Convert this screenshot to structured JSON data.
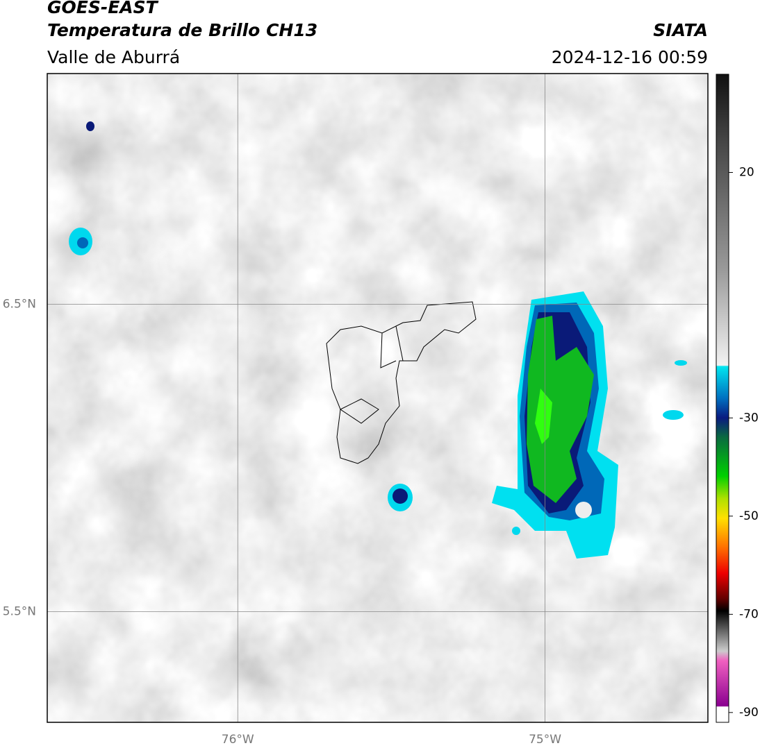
{
  "header": {
    "satellite": "GOES-EAST",
    "product": "Temperatura de Brillo CH13",
    "region": "Valle de Aburrá",
    "agency": "SIATA",
    "datetime": "2024-12-16 00:59"
  },
  "map": {
    "xlim": [
      -76.62,
      -74.47
    ],
    "ylim": [
      5.14,
      7.25
    ],
    "xticks": [
      {
        "value": -76,
        "label": "76°W"
      },
      {
        "value": -75,
        "label": "75°W"
      }
    ],
    "yticks": [
      {
        "value": 6.5,
        "label": "6.5°N"
      },
      {
        "value": 5.5,
        "label": "5.5°N"
      }
    ],
    "grid": true
  },
  "colorbar": {
    "lim": [
      -92,
      40
    ],
    "ticks": [
      20,
      -30,
      -50,
      -70,
      -90
    ]
  }
}
